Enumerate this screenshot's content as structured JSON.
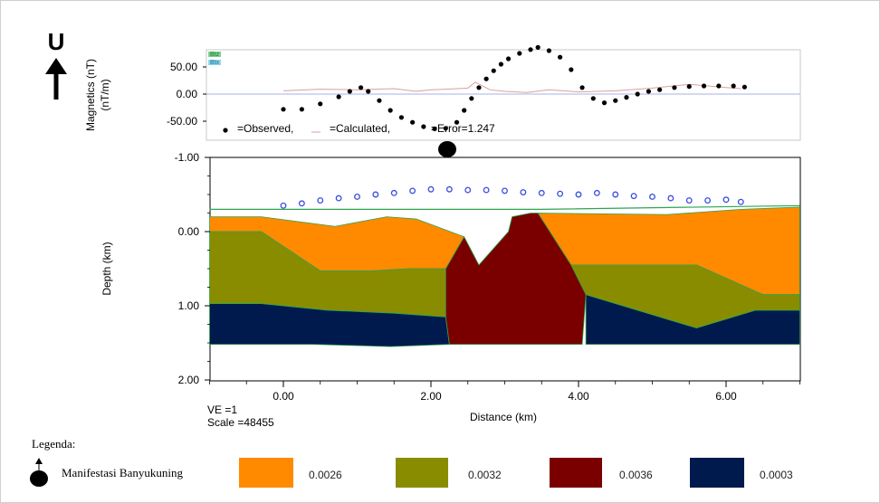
{
  "compass": {
    "letter": "U"
  },
  "chart_data": [
    {
      "type": "scatter",
      "panel": "magnetics",
      "ylabel": "Magnetics (nT)\n(nT/m)",
      "ylim": [
        -68,
        90
      ],
      "xlim": [
        -1.0,
        7.0
      ],
      "yticks": [
        "50.00",
        "0.00",
        "-50.00"
      ],
      "ytick_values": [
        50,
        0,
        -50
      ],
      "mini_legend": [
        "Btz",
        "Btx"
      ],
      "legend_text": {
        "observed": "=Observed,",
        "calculated": "=Calculated,",
        "error": "=Error=1.247"
      },
      "observed": {
        "x": [
          0.0,
          0.25,
          0.5,
          0.75,
          0.9,
          1.05,
          1.15,
          1.3,
          1.45,
          1.6,
          1.75,
          1.9,
          2.05,
          2.2,
          2.35,
          2.45,
          2.55,
          2.65,
          2.75,
          2.85,
          2.95,
          3.05,
          3.2,
          3.35,
          3.45,
          3.6,
          3.75,
          3.9,
          4.05,
          4.2,
          4.35,
          4.5,
          4.65,
          4.8,
          4.95,
          5.1,
          5.3,
          5.5,
          5.7,
          5.9,
          6.1,
          6.25
        ],
        "y": [
          -28,
          -28,
          -18,
          -5,
          5,
          12,
          5,
          -12,
          -30,
          -43,
          -52,
          -60,
          -64,
          -63,
          -52,
          -30,
          -8,
          12,
          28,
          43,
          55,
          65,
          75,
          82,
          86,
          80,
          68,
          45,
          12,
          -8,
          -16,
          -12,
          -6,
          0,
          5,
          8,
          12,
          14,
          15,
          15,
          15,
          13
        ]
      },
      "calculated": {
        "x": [
          0.0,
          0.5,
          1.0,
          1.5,
          1.8,
          2.0,
          2.2,
          2.5,
          2.6,
          2.8,
          3.0,
          3.3,
          3.6,
          4.0,
          4.5,
          5.0,
          5.5,
          6.0,
          6.2
        ],
        "y": [
          6,
          9,
          8,
          10,
          5,
          8,
          9,
          11,
          22,
          8,
          5,
          3,
          8,
          4,
          6,
          11,
          18,
          12,
          10
        ]
      }
    },
    {
      "type": "area",
      "panel": "depth",
      "ylabel": "Depth (km)",
      "xlabel": "Distance (km)",
      "ylim": [
        -1.0,
        2.0
      ],
      "xlim": [
        -1.0,
        7.0
      ],
      "yticks": [
        "-1.00",
        "0.00",
        "1.00",
        "2.00"
      ],
      "ytick_values": [
        -1,
        0,
        1,
        2
      ],
      "xticks": [
        "0.00",
        "2.00",
        "4.00",
        "6.00"
      ],
      "xtick_values": [
        0,
        2,
        4,
        6
      ],
      "ve_label": "VE =1",
      "scale_label": "Scale =48455",
      "bodies": [
        {
          "name": "0.0026",
          "color": "#ff8a00",
          "points": [
            [
              -1,
              -0.2
            ],
            [
              -0.3,
              -0.2
            ],
            [
              0.7,
              -0.07
            ],
            [
              1.4,
              -0.2
            ],
            [
              1.8,
              -0.17
            ],
            [
              2.45,
              0.07
            ],
            [
              2.2,
              0.5
            ],
            [
              1.7,
              0.5
            ],
            [
              1.2,
              0.53
            ],
            [
              0.5,
              0.53
            ],
            [
              -0.3,
              0.0
            ],
            [
              -1,
              0.0
            ]
          ]
        },
        {
          "name": "0.0026",
          "color": "#ff8a00",
          "points": [
            [
              3.45,
              -0.25
            ],
            [
              5.2,
              -0.23
            ],
            [
              6.2,
              -0.3
            ],
            [
              7,
              -0.33
            ],
            [
              7,
              0.85
            ],
            [
              6.5,
              0.85
            ],
            [
              5.6,
              0.45
            ],
            [
              4.05,
              0.45
            ],
            [
              3.9,
              0.45
            ],
            [
              3.45,
              -0.25
            ]
          ]
        },
        {
          "name": "0.0032",
          "color": "#8a8c00",
          "points": [
            [
              -1,
              0.0
            ],
            [
              -0.3,
              0.0
            ],
            [
              0.5,
              0.53
            ],
            [
              1.2,
              0.53
            ],
            [
              1.7,
              0.5
            ],
            [
              2.2,
              0.5
            ],
            [
              2.2,
              1.15
            ],
            [
              1.5,
              1.1
            ],
            [
              0.6,
              1.06
            ],
            [
              -0.3,
              0.97
            ],
            [
              -1,
              0.97
            ]
          ]
        },
        {
          "name": "0.0032",
          "color": "#8a8c00",
          "points": [
            [
              3.9,
              0.45
            ],
            [
              5.6,
              0.45
            ],
            [
              6.5,
              0.85
            ],
            [
              7,
              0.85
            ],
            [
              7,
              1.06
            ],
            [
              6.4,
              1.06
            ],
            [
              5.6,
              1.3
            ],
            [
              4.1,
              0.85
            ]
          ]
        },
        {
          "name": "0.0003",
          "color": "#001a4d",
          "points": [
            [
              -1,
              0.97
            ],
            [
              -0.3,
              0.97
            ],
            [
              0.6,
              1.06
            ],
            [
              1.5,
              1.1
            ],
            [
              2.2,
              1.15
            ],
            [
              2.25,
              1.52
            ],
            [
              1.45,
              1.55
            ],
            [
              0.4,
              1.52
            ],
            [
              -1,
              1.52
            ]
          ]
        },
        {
          "name": "0.0003",
          "color": "#001a4d",
          "points": [
            [
              4.1,
              0.85
            ],
            [
              5.6,
              1.3
            ],
            [
              6.4,
              1.06
            ],
            [
              7,
              1.06
            ],
            [
              7,
              1.52
            ],
            [
              4.1,
              1.52
            ]
          ]
        },
        {
          "name": "0.0036",
          "color": "#7a0000",
          "points": [
            [
              2.2,
              0.5
            ],
            [
              2.45,
              0.07
            ],
            [
              2.65,
              0.45
            ],
            [
              3.05,
              0.0
            ],
            [
              3.1,
              -0.2
            ],
            [
              3.35,
              -0.25
            ],
            [
              3.45,
              -0.25
            ],
            [
              3.9,
              0.45
            ],
            [
              4.1,
              0.85
            ],
            [
              4.05,
              1.52
            ],
            [
              2.25,
              1.52
            ],
            [
              2.2,
              1.15
            ]
          ]
        }
      ],
      "surface_points": {
        "x": [
          0.0,
          0.25,
          0.5,
          0.75,
          1.0,
          1.25,
          1.5,
          1.75,
          2.0,
          2.25,
          2.5,
          2.75,
          3.0,
          3.25,
          3.5,
          3.75,
          4.0,
          4.25,
          4.5,
          4.75,
          5.0,
          5.25,
          5.5,
          5.75,
          6.0,
          6.2
        ],
        "y": [
          -0.35,
          -0.38,
          -0.42,
          -0.45,
          -0.47,
          -0.5,
          -0.52,
          -0.55,
          -0.57,
          -0.57,
          -0.56,
          -0.56,
          -0.55,
          -0.53,
          -0.52,
          -0.51,
          -0.5,
          -0.52,
          -0.5,
          -0.48,
          -0.47,
          -0.45,
          -0.42,
          -0.42,
          -0.43,
          -0.4
        ]
      },
      "topo_line": [
        [
          -1,
          -0.3
        ],
        [
          2.5,
          -0.3
        ],
        [
          3.5,
          -0.3
        ],
        [
          7,
          -0.35
        ]
      ]
    }
  ],
  "legend": {
    "title": "Legenda:",
    "manifestation_label": "Manifestasi Banyukuning",
    "items": [
      {
        "label": "0.0026",
        "color": "#ff8a00"
      },
      {
        "label": "0.0032",
        "color": "#8a8c00"
      },
      {
        "label": "0.0036",
        "color": "#7a0000"
      },
      {
        "label": "0.0003",
        "color": "#001a4d"
      }
    ]
  }
}
